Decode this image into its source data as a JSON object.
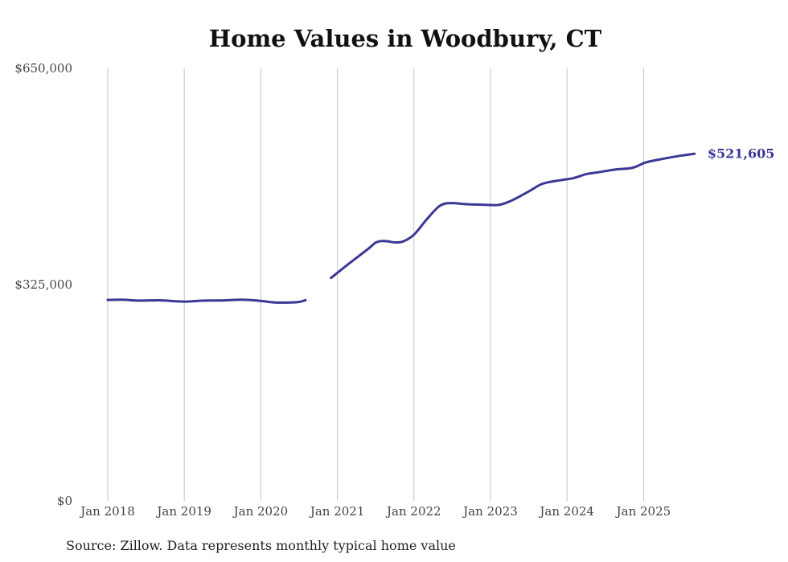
{
  "chart_data": {
    "type": "line",
    "title": "Home Values in Woodbury, CT",
    "source": "Source: Zillow. Data represents monthly typical home value",
    "xlabel": "",
    "ylabel": "",
    "ylim": [
      0,
      650000
    ],
    "y_ticks": [
      {
        "value": 0,
        "label": "$0"
      },
      {
        "value": 325000,
        "label": "$325,000"
      },
      {
        "value": 650000,
        "label": "$650,000"
      }
    ],
    "x_range": [
      "2018-01",
      "2025-10"
    ],
    "x_ticks": [
      {
        "date": "2018-01",
        "label": "Jan 2018"
      },
      {
        "date": "2019-01",
        "label": "Jan 2019"
      },
      {
        "date": "2020-01",
        "label": "Jan 2020"
      },
      {
        "date": "2021-01",
        "label": "Jan 2021"
      },
      {
        "date": "2022-01",
        "label": "Jan 2022"
      },
      {
        "date": "2023-01",
        "label": "Jan 2023"
      },
      {
        "date": "2024-01",
        "label": "Jan 2024"
      },
      {
        "date": "2025-01",
        "label": "Jan 2025"
      }
    ],
    "grid": {
      "vertical": true,
      "horizontal": false
    },
    "legend": "none",
    "line_color": "#3b3796",
    "end_label": "$521,605",
    "series": [
      {
        "segments": [
          [
            [
              "2018-01",
              302000
            ],
            [
              "2018-03",
              302300
            ],
            [
              "2018-06",
              301000
            ],
            [
              "2018-09",
              301500
            ],
            [
              "2018-12",
              299800
            ],
            [
              "2019-01",
              299500
            ],
            [
              "2019-04",
              301000
            ],
            [
              "2019-07",
              301200
            ],
            [
              "2019-10",
              302300
            ],
            [
              "2020-01",
              300500
            ],
            [
              "2020-03",
              298300
            ],
            [
              "2020-05",
              298000
            ],
            [
              "2020-07",
              299000
            ],
            [
              "2020-08",
              301500
            ]
          ],
          [
            [
              "2020-12",
              335000
            ],
            [
              "2021-03",
              358000
            ],
            [
              "2021-06",
              380000
            ],
            [
              "2021-07",
              388000
            ],
            [
              "2021-08",
              390500
            ],
            [
              "2021-09",
              390000
            ],
            [
              "2021-10",
              388500
            ],
            [
              "2021-11",
              389000
            ],
            [
              "2021-12",
              393000
            ],
            [
              "2022-01",
              400000
            ],
            [
              "2022-03",
              423000
            ],
            [
              "2022-05",
              443000
            ],
            [
              "2022-06",
              447000
            ],
            [
              "2022-07",
              447500
            ],
            [
              "2022-09",
              446000
            ],
            [
              "2022-12",
              445000
            ],
            [
              "2023-02",
              444500
            ],
            [
              "2023-04",
              450000
            ],
            [
              "2023-07",
              465000
            ],
            [
              "2023-09",
              476000
            ],
            [
              "2023-12",
              482000
            ],
            [
              "2024-02",
              485000
            ],
            [
              "2024-04",
              491000
            ],
            [
              "2024-06",
              494000
            ],
            [
              "2024-09",
              498500
            ],
            [
              "2024-11",
              500000
            ],
            [
              "2024-12",
              503000
            ],
            [
              "2025-01",
              507500
            ],
            [
              "2025-04",
              514000
            ],
            [
              "2025-07",
              519000
            ],
            [
              "2025-09",
              521605
            ]
          ]
        ]
      }
    ]
  }
}
